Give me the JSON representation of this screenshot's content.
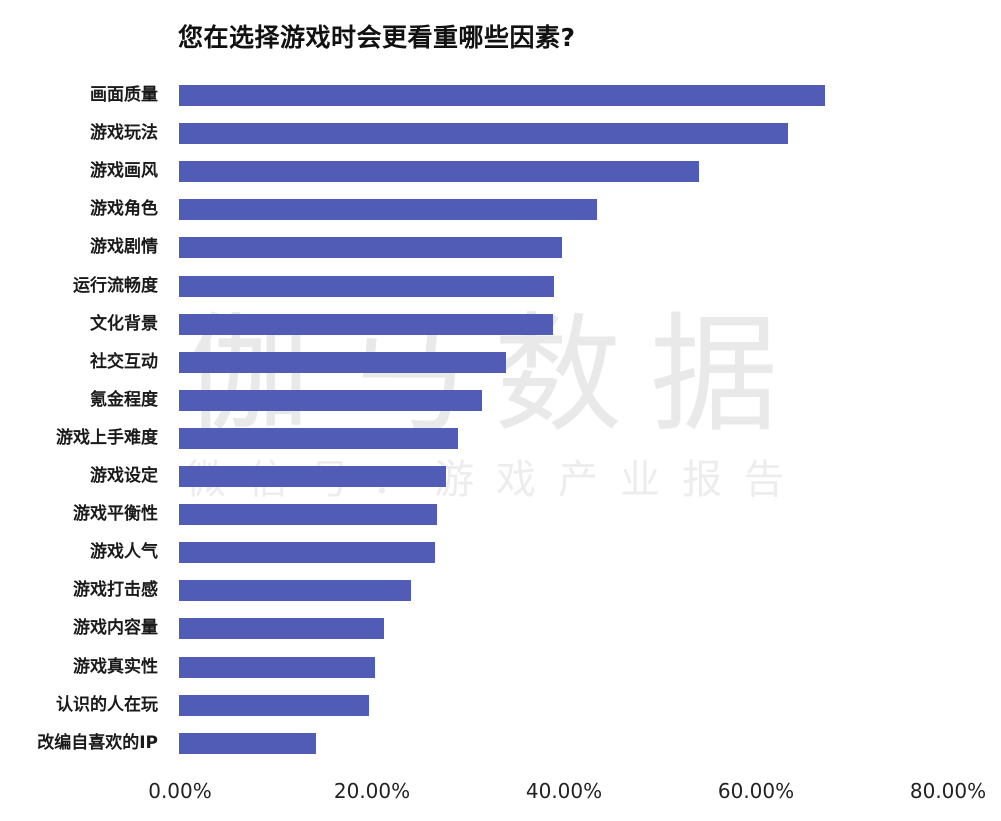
{
  "chart_data": {
    "type": "bar",
    "orientation": "horizontal",
    "title": "您在选择游戏时会更看重哪些因素?",
    "xlabel": "",
    "ylabel": "",
    "xlim": [
      0,
      80
    ],
    "x_ticks": [
      "0.00%",
      "20.00%",
      "40.00%",
      "60.00%",
      "80.00%"
    ],
    "grid": false,
    "legend": null,
    "bar_color": "#4a55b3",
    "categories": [
      "画面质量",
      "游戏玩法",
      "游戏画风",
      "游戏角色",
      "游戏剧情",
      "运行流畅度",
      "文化背景",
      "社交互动",
      "氪金程度",
      "游戏上手难度",
      "游戏设定",
      "游戏平衡性",
      "游戏人气",
      "游戏打击感",
      "游戏内容量",
      "游戏真实性",
      "认识的人在玩",
      "改编自喜欢的IP"
    ],
    "values": [
      67.3,
      63.4,
      54.2,
      43.5,
      39.9,
      39.1,
      39.0,
      34.1,
      31.6,
      29.1,
      27.8,
      26.9,
      26.7,
      24.2,
      21.4,
      20.4,
      19.8,
      14.3
    ],
    "unit": "%"
  },
  "watermark": {
    "main": "伽马数据",
    "sub": "微信号：游戏产业报告"
  }
}
